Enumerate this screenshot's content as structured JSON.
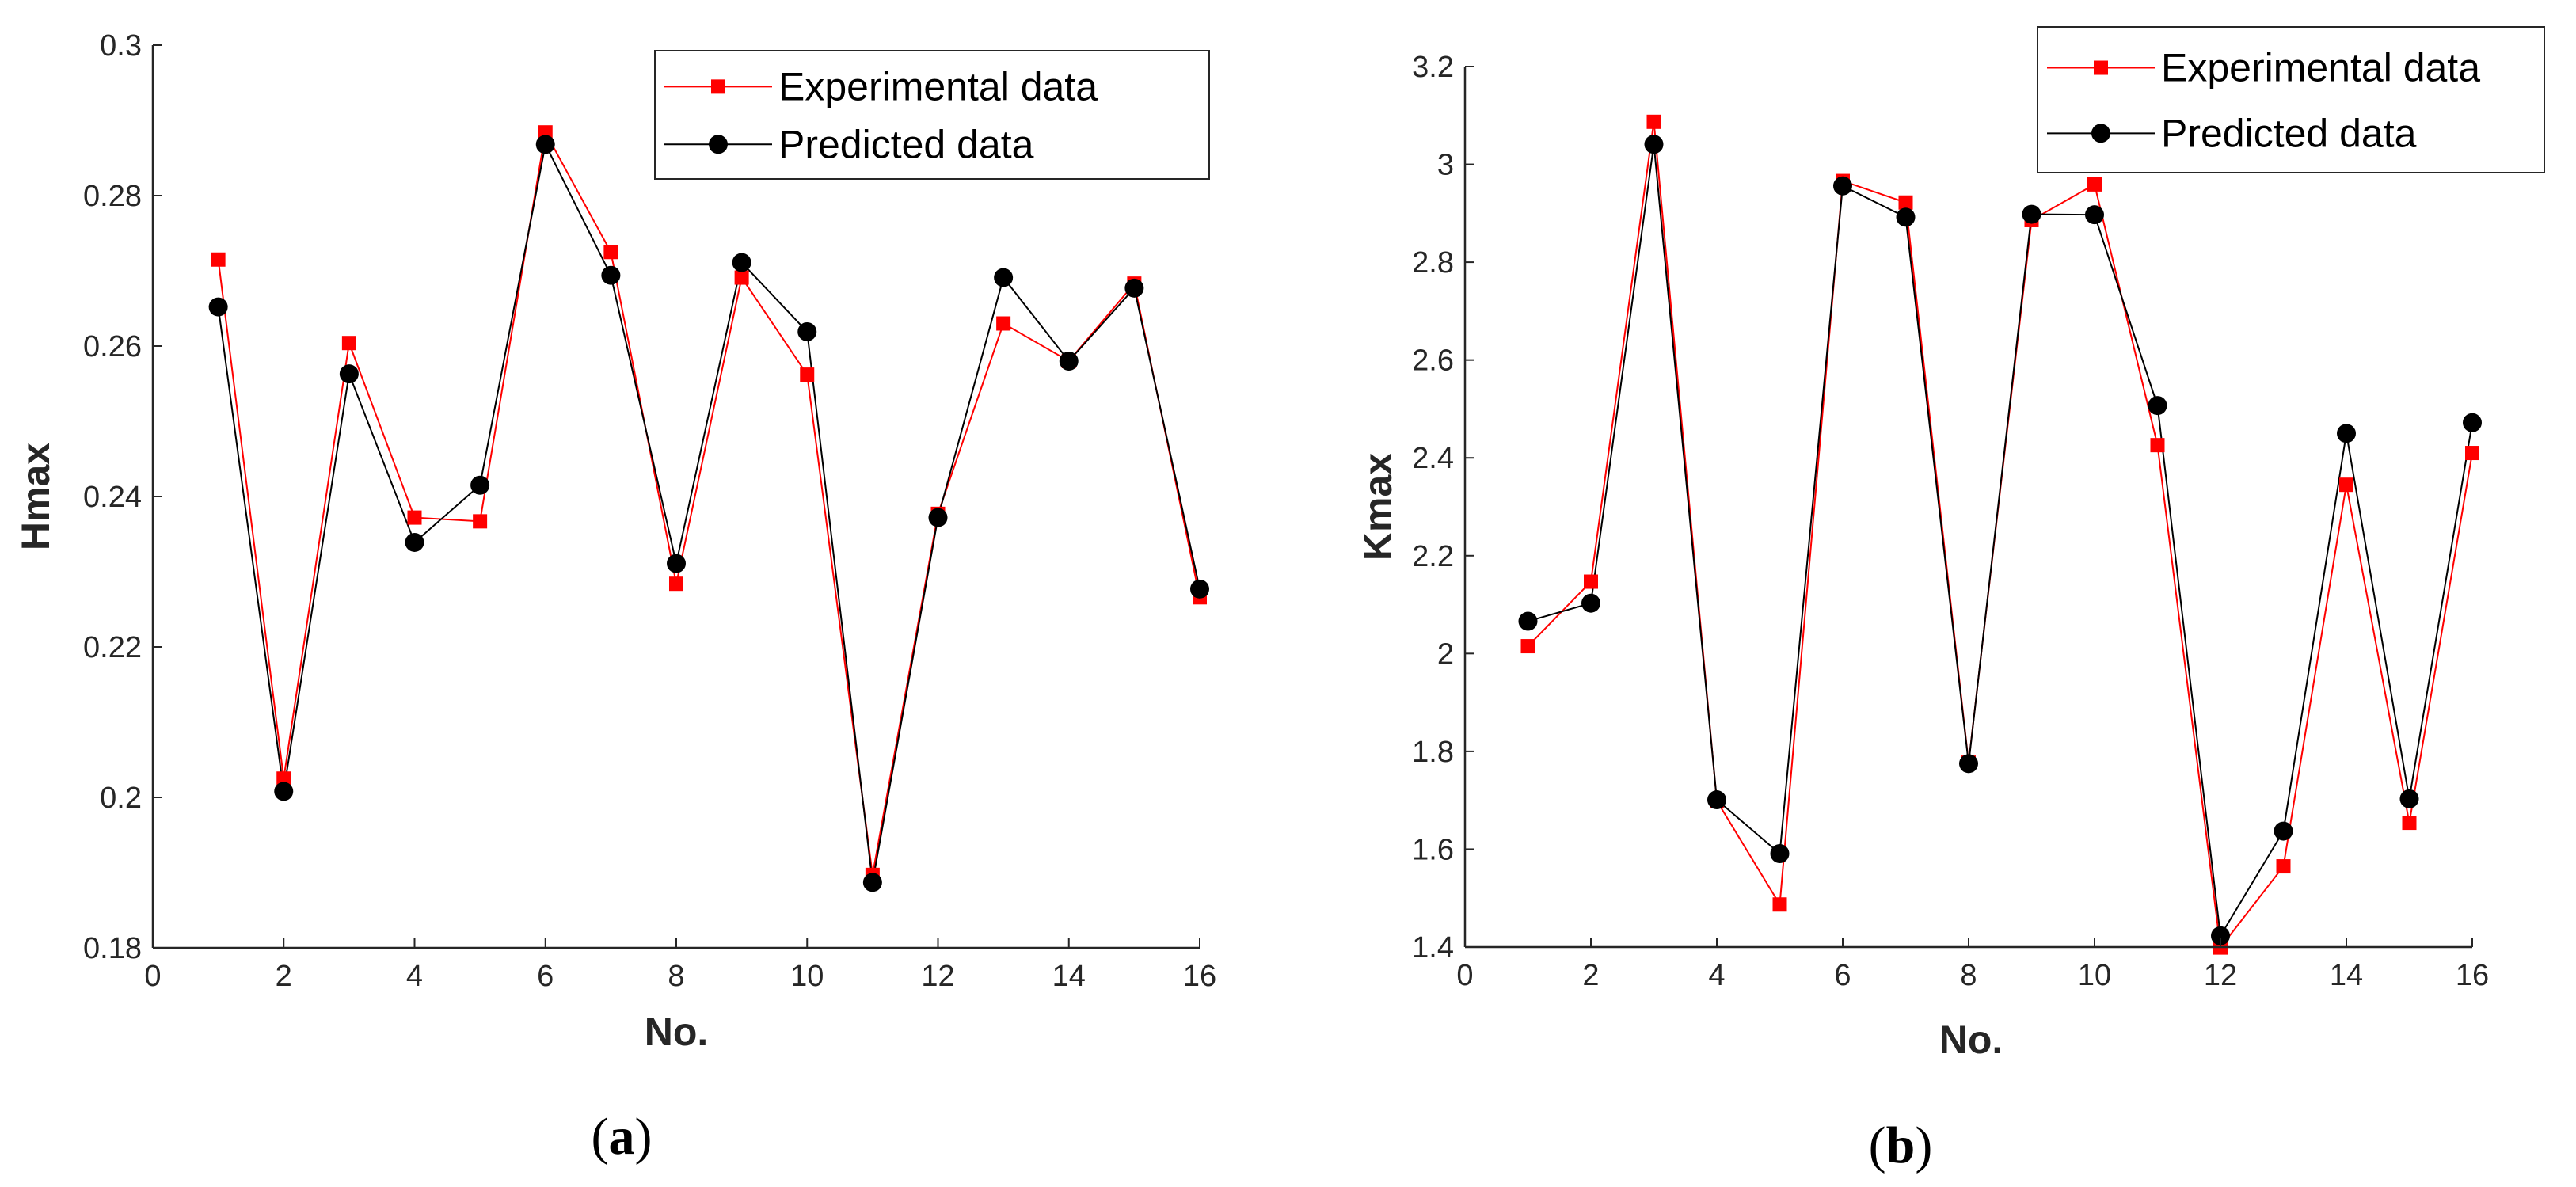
{
  "colors": {
    "experimental": "#ff0000",
    "predicted": "#000000",
    "axis": "#262626"
  },
  "chart_data": [
    {
      "type": "line",
      "panel_label": "a",
      "title": "",
      "xlabel": "No.",
      "ylabel": "Hmax",
      "xlim": [
        0,
        16
      ],
      "ylim": [
        0.18,
        0.3
      ],
      "xticks": [
        0,
        2,
        4,
        6,
        8,
        10,
        12,
        14,
        16
      ],
      "xtick_labels": [
        "0",
        "2",
        "4",
        "6",
        "8",
        "10",
        "12",
        "14",
        "16"
      ],
      "yticks": [
        0.18,
        0.2,
        0.22,
        0.24,
        0.26,
        0.28,
        0.3
      ],
      "ytick_labels": [
        "0.18",
        "0.2",
        "0.22",
        "0.24",
        "0.26",
        "0.28",
        "0.3"
      ],
      "legend_position": "top-right",
      "x": [
        1,
        2,
        3,
        4,
        5,
        6,
        7,
        8,
        9,
        10,
        11,
        12,
        13,
        14,
        15,
        16
      ],
      "series": [
        {
          "name": "Experimental data",
          "marker": "square",
          "values": [
            0.2715,
            0.2025,
            0.2604,
            0.2372,
            0.2367,
            0.2884,
            0.2725,
            0.2284,
            0.2691,
            0.2562,
            0.1897,
            0.2377,
            0.263,
            0.258,
            0.2683,
            0.2266
          ]
        },
        {
          "name": "Predicted data",
          "marker": "circle",
          "values": [
            0.2652,
            0.2008,
            0.2563,
            0.2339,
            0.2415,
            0.2868,
            0.2694,
            0.2311,
            0.2711,
            0.2619,
            0.1887,
            0.2372,
            0.2691,
            0.258,
            0.2677,
            0.2277
          ]
        }
      ]
    },
    {
      "type": "line",
      "panel_label": "b",
      "title": "",
      "xlabel": "No.",
      "ylabel": "Kmax",
      "xlim": [
        0,
        16
      ],
      "ylim": [
        1.4,
        3.2
      ],
      "xticks": [
        0,
        2,
        4,
        6,
        8,
        10,
        12,
        14,
        16
      ],
      "xtick_labels": [
        "0",
        "2",
        "4",
        "6",
        "8",
        "10",
        "12",
        "14",
        "16"
      ],
      "yticks": [
        1.4,
        1.6,
        1.8,
        2.0,
        2.2,
        2.4,
        2.6,
        2.8,
        3.0,
        3.2
      ],
      "ytick_labels": [
        "1.4",
        "1.6",
        "1.8",
        "2",
        "2.2",
        "2.4",
        "2.6",
        "2.8",
        "3",
        "3.2"
      ],
      "legend_position": "top-right",
      "x": [
        1,
        2,
        3,
        4,
        5,
        6,
        7,
        8,
        9,
        10,
        11,
        12,
        13,
        14,
        15,
        16
      ],
      "series": [
        {
          "name": "Experimental data",
          "marker": "square",
          "values": [
            2.015,
            2.147,
            3.087,
            1.699,
            1.487,
            2.966,
            2.922,
            1.777,
            2.886,
            2.959,
            2.426,
            1.399,
            1.565,
            2.345,
            1.654,
            2.41
          ]
        },
        {
          "name": "Predicted data",
          "marker": "circle",
          "values": [
            2.066,
            2.103,
            3.041,
            1.701,
            1.591,
            2.956,
            2.892,
            1.775,
            2.898,
            2.897,
            2.507,
            1.423,
            1.637,
            2.45,
            1.703,
            2.472
          ]
        }
      ]
    }
  ]
}
